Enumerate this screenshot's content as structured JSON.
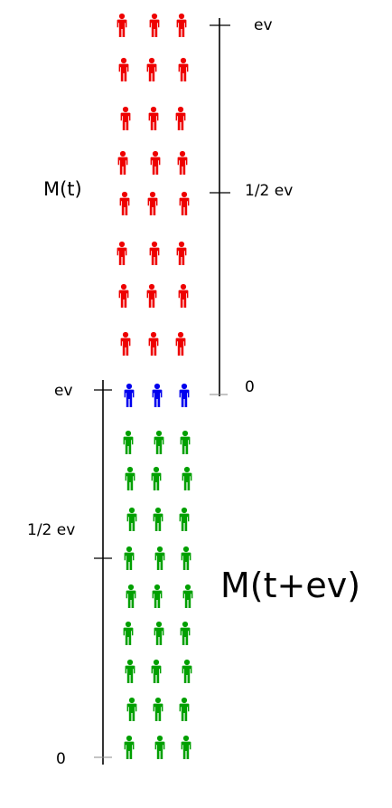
{
  "upper_scale": {
    "label": "M(t)",
    "ticks": [
      "ev",
      "1/2 ev",
      "0"
    ]
  },
  "lower_scale": {
    "label": "M(t+ev)",
    "ticks": [
      "ev",
      "1/2 ev",
      "0"
    ]
  },
  "people_per_row": 3,
  "groups": [
    {
      "name": "red",
      "color": "#ee0000",
      "rows": 8
    },
    {
      "name": "blue",
      "color": "#0000ee",
      "rows": 1
    },
    {
      "name": "green",
      "color": "#00a000",
      "rows": 9
    }
  ]
}
